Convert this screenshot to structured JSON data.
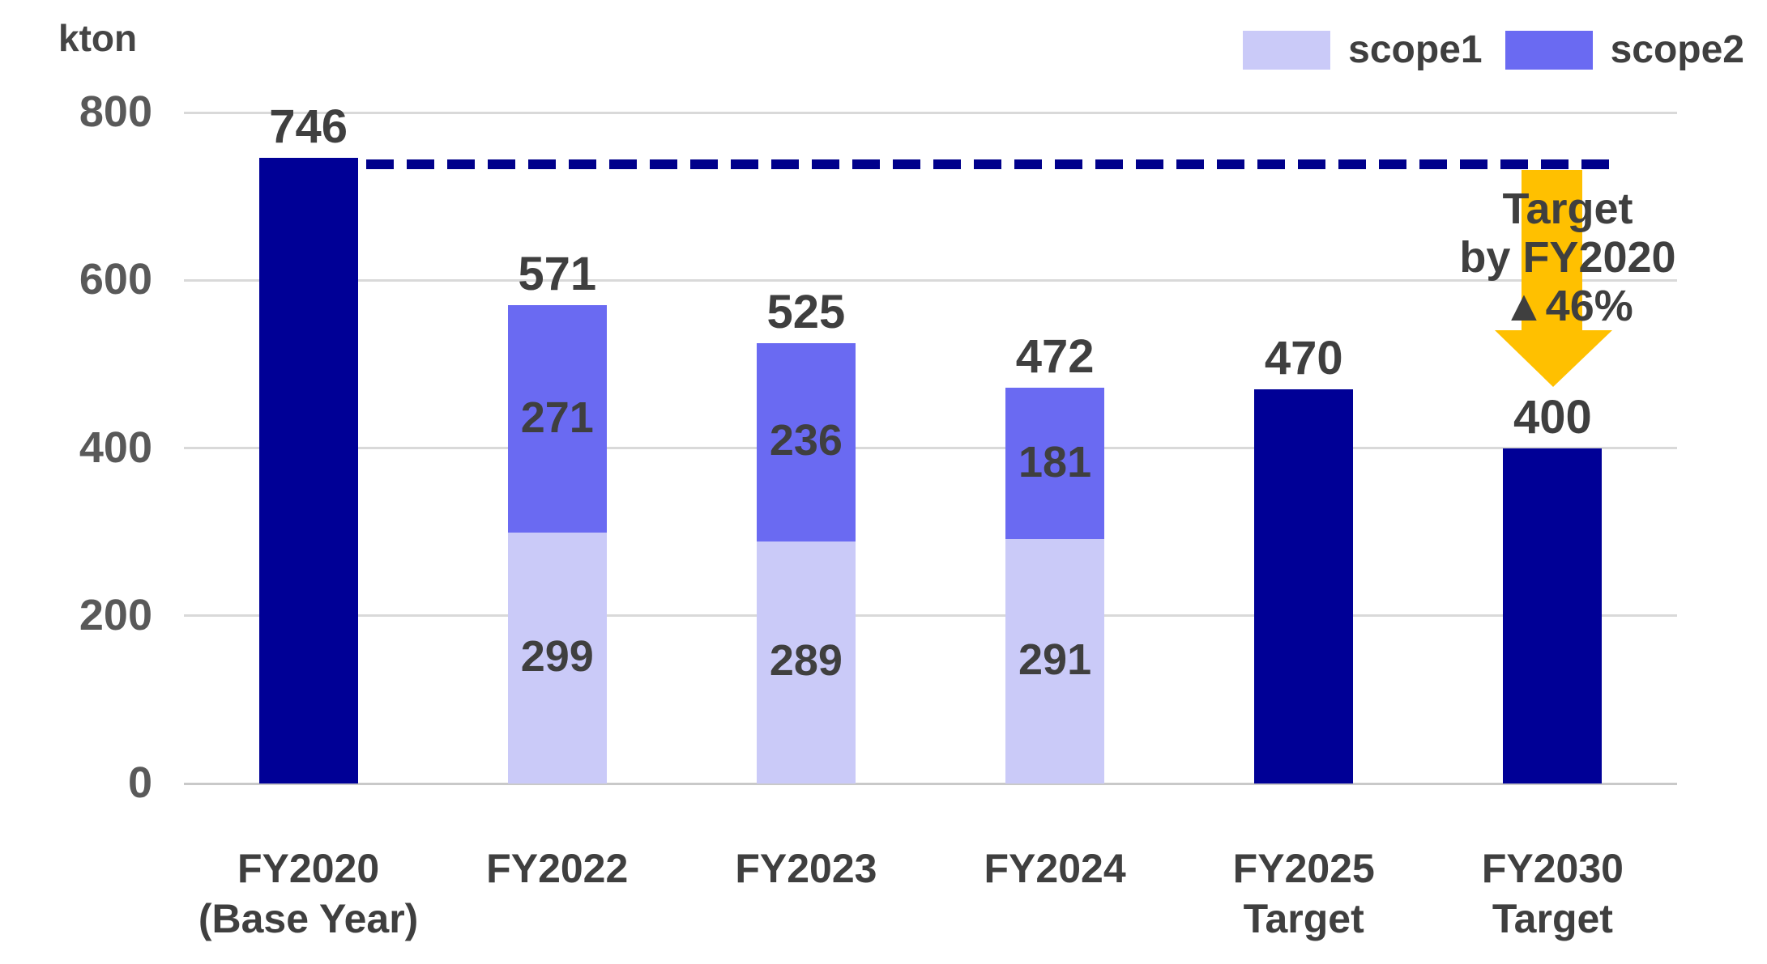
{
  "unit_label": "kton",
  "colors": {
    "navy": "#000096",
    "scope1": "#cacaf8",
    "scope2": "#6a6af2",
    "arrow": "#ffc000",
    "dashed": "#00008b",
    "grid": "#d9d9d9",
    "tick_text": "#595959",
    "label_text": "#3f3f3f"
  },
  "legend": {
    "items": [
      {
        "label": "scope1",
        "color": "scope1"
      },
      {
        "label": "scope2",
        "color": "scope2"
      }
    ]
  },
  "annotation": {
    "line1": "Target",
    "line2": "by FY2020",
    "line3": "▲46%"
  },
  "chart_data": {
    "type": "bar",
    "stacked": true,
    "title": "",
    "unit": "kton",
    "ylabel": "kton",
    "ylim": [
      0,
      800
    ],
    "yticks": [
      0,
      200,
      400,
      600,
      800
    ],
    "grid": true,
    "legend_position": "top-right",
    "categories": [
      "FY2020 (Base Year)",
      "FY2022",
      "FY2023",
      "FY2024",
      "FY2025 Target",
      "FY2030 Target"
    ],
    "series": [
      {
        "name": "scope1",
        "color": "#cacaf8",
        "values": [
          0,
          299,
          289,
          291,
          0,
          0
        ]
      },
      {
        "name": "scope2",
        "color": "#6a6af2",
        "values": [
          0,
          271,
          236,
          181,
          0,
          0
        ]
      },
      {
        "name": "total (unsplit)",
        "color": "#000096",
        "values": [
          746,
          0,
          0,
          0,
          470,
          400
        ]
      }
    ],
    "totals": [
      746,
      571,
      525,
      472,
      470,
      400
    ],
    "reference_line": {
      "value": 746,
      "style": "dashed",
      "color": "#00008b"
    },
    "bars": [
      {
        "label_lines": [
          "FY2020",
          "(Base Year)"
        ],
        "total": 746,
        "segments": [
          {
            "name": "total",
            "color": "navy",
            "value": 746,
            "show_value": false
          }
        ]
      },
      {
        "label_lines": [
          "FY2022"
        ],
        "total": 571,
        "segments": [
          {
            "name": "scope1",
            "color": "scope1",
            "value": 299,
            "show_value": true
          },
          {
            "name": "scope2",
            "color": "scope2",
            "value": 271,
            "show_value": true
          }
        ]
      },
      {
        "label_lines": [
          "FY2023"
        ],
        "total": 525,
        "segments": [
          {
            "name": "scope1",
            "color": "scope1",
            "value": 289,
            "show_value": true
          },
          {
            "name": "scope2",
            "color": "scope2",
            "value": 236,
            "show_value": true
          }
        ]
      },
      {
        "label_lines": [
          "FY2024"
        ],
        "total": 472,
        "segments": [
          {
            "name": "scope1",
            "color": "scope1",
            "value": 291,
            "show_value": true
          },
          {
            "name": "scope2",
            "color": "scope2",
            "value": 181,
            "show_value": true
          }
        ]
      },
      {
        "label_lines": [
          "FY2025",
          "Target"
        ],
        "total": 470,
        "segments": [
          {
            "name": "total",
            "color": "navy",
            "value": 470,
            "show_value": false
          }
        ]
      },
      {
        "label_lines": [
          "FY2030",
          "Target"
        ],
        "total": 400,
        "segments": [
          {
            "name": "total",
            "color": "navy",
            "value": 400,
            "show_value": false
          }
        ]
      }
    ]
  }
}
